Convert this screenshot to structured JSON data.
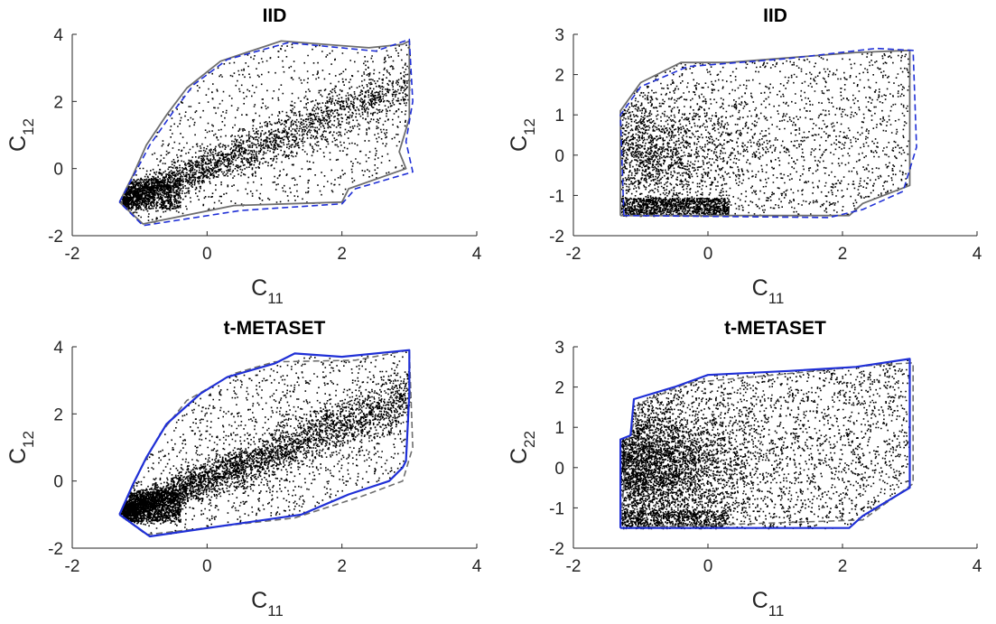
{
  "figure": {
    "colors": {
      "points": "#000000",
      "blue_boundary": "#1f2fd6",
      "gray_boundary": "#6e6e6e",
      "axes": "#262626"
    }
  },
  "chart_data": [
    {
      "type": "scatter",
      "title": "IID",
      "xlabel": {
        "base": "C",
        "sub": "11"
      },
      "ylabel": {
        "base": "C",
        "sub": "12"
      },
      "xlim": [
        -2,
        4
      ],
      "ylim": [
        -2,
        4
      ],
      "xticks": [
        "-2",
        "0",
        "2",
        "4"
      ],
      "yticks": [
        "-2",
        "0",
        "2",
        "4"
      ],
      "points": {
        "count_approx": 4000,
        "distribution": "dense near (-1.2,-0.9), spreading diagonally toward (3,3.8)"
      },
      "boundaries": [
        {
          "style": "solid",
          "color": "gray",
          "points": [
            [
              -1.3,
              -1.0
            ],
            [
              -1.1,
              -0.2
            ],
            [
              -0.9,
              0.7
            ],
            [
              -0.6,
              1.6
            ],
            [
              -0.3,
              2.4
            ],
            [
              0.2,
              3.2
            ],
            [
              1.1,
              3.8
            ],
            [
              2.4,
              3.6
            ],
            [
              2.9,
              3.7
            ],
            [
              3.0,
              3.8
            ],
            [
              3.0,
              1.5
            ],
            [
              2.85,
              0.5
            ],
            [
              2.95,
              0.0
            ],
            [
              2.1,
              -0.6
            ],
            [
              2.0,
              -1.0
            ],
            [
              0.4,
              -1.1
            ],
            [
              -0.95,
              -1.65
            ],
            [
              -1.3,
              -1.0
            ]
          ]
        },
        {
          "style": "dashed",
          "color": "blue",
          "points": [
            [
              -1.3,
              -1.0
            ],
            [
              -1.1,
              -0.25
            ],
            [
              -0.85,
              0.7
            ],
            [
              -0.5,
              1.7
            ],
            [
              -0.2,
              2.5
            ],
            [
              0.3,
              3.25
            ],
            [
              1.2,
              3.75
            ],
            [
              2.5,
              3.5
            ],
            [
              3.0,
              3.85
            ],
            [
              3.05,
              2.0
            ],
            [
              2.95,
              0.8
            ],
            [
              3.05,
              -0.1
            ],
            [
              2.2,
              -0.6
            ],
            [
              2.0,
              -1.05
            ],
            [
              0.5,
              -1.25
            ],
            [
              -0.95,
              -1.7
            ],
            [
              -1.3,
              -1.0
            ]
          ]
        }
      ]
    },
    {
      "type": "scatter",
      "title": "IID",
      "xlabel": {
        "base": "C",
        "sub": "11"
      },
      "ylabel": {
        "base": "C",
        "sub": "12"
      },
      "xlim": [
        -2,
        4
      ],
      "ylim": [
        -2,
        3
      ],
      "xticks": [
        "-2",
        "0",
        "2",
        "4"
      ],
      "yticks": [
        "-2",
        "-1",
        "0",
        "1",
        "2",
        "3"
      ],
      "points": {
        "count_approx": 4000,
        "distribution": "dense near (-0.5,0.2), filling box x in [-1.3,3], y in [-1.5,2.6]"
      },
      "boundaries": [
        {
          "style": "solid",
          "color": "gray",
          "points": [
            [
              -1.3,
              -1.5
            ],
            [
              -1.3,
              1.1
            ],
            [
              -1.0,
              1.8
            ],
            [
              -0.4,
              2.3
            ],
            [
              0.3,
              2.3
            ],
            [
              2.2,
              2.55
            ],
            [
              3.0,
              2.6
            ],
            [
              3.0,
              -0.75
            ],
            [
              2.3,
              -1.2
            ],
            [
              2.1,
              -1.5
            ],
            [
              -1.3,
              -1.5
            ]
          ]
        },
        {
          "style": "dashed",
          "color": "blue",
          "points": [
            [
              -1.25,
              -1.5
            ],
            [
              -1.3,
              1.0
            ],
            [
              -1.0,
              1.7
            ],
            [
              -0.3,
              2.2
            ],
            [
              1.2,
              2.4
            ],
            [
              2.5,
              2.65
            ],
            [
              3.05,
              2.6
            ],
            [
              3.1,
              0.2
            ],
            [
              2.9,
              -0.9
            ],
            [
              2.3,
              -1.35
            ],
            [
              1.8,
              -1.55
            ],
            [
              -1.25,
              -1.5
            ]
          ]
        }
      ]
    },
    {
      "type": "scatter",
      "title": "t-METASET",
      "xlabel": {
        "base": "C",
        "sub": "11"
      },
      "ylabel": {
        "base": "C",
        "sub": "12"
      },
      "xlim": [
        -2,
        4
      ],
      "ylim": [
        -2,
        4
      ],
      "xticks": [
        "-2",
        "0",
        "2",
        "4"
      ],
      "yticks": [
        "-2",
        "0",
        "2",
        "4"
      ],
      "points": {
        "count_approx": 6000,
        "distribution": "dense near (-1.2,-0.9), spreading diagonally toward (3,3.9)"
      },
      "boundaries": [
        {
          "style": "solid",
          "color": "blue",
          "points": [
            [
              -1.3,
              -1.0
            ],
            [
              -1.1,
              -0.1
            ],
            [
              -0.9,
              0.7
            ],
            [
              -0.6,
              1.7
            ],
            [
              -0.1,
              2.6
            ],
            [
              0.3,
              3.1
            ],
            [
              1.0,
              3.5
            ],
            [
              1.3,
              3.8
            ],
            [
              2.0,
              3.7
            ],
            [
              3.0,
              3.9
            ],
            [
              3.0,
              2.6
            ],
            [
              2.95,
              0.6
            ],
            [
              2.9,
              0.4
            ],
            [
              2.7,
              0.0
            ],
            [
              2.1,
              -0.4
            ],
            [
              1.4,
              -1.0
            ],
            [
              -0.85,
              -1.65
            ],
            [
              -1.3,
              -1.0
            ]
          ]
        },
        {
          "style": "dashed",
          "color": "gray",
          "points": [
            [
              -1.3,
              -1.0
            ],
            [
              -1.0,
              0.3
            ],
            [
              -0.7,
              1.4
            ],
            [
              -0.3,
              2.4
            ],
            [
              0.4,
              3.2
            ],
            [
              1.0,
              3.55
            ],
            [
              2.2,
              3.6
            ],
            [
              3.0,
              3.9
            ],
            [
              3.05,
              1.0
            ],
            [
              2.9,
              0.0
            ],
            [
              2.3,
              -0.45
            ],
            [
              1.3,
              -1.1
            ],
            [
              -0.9,
              -1.6
            ],
            [
              -1.3,
              -1.0
            ]
          ]
        }
      ]
    },
    {
      "type": "scatter",
      "title": "t-METASET",
      "xlabel": {
        "base": "C",
        "sub": "11"
      },
      "ylabel": {
        "base": "C",
        "sub": "22"
      },
      "xlim": [
        -2,
        4
      ],
      "ylim": [
        -2,
        3
      ],
      "xticks": [
        "-2",
        "0",
        "2",
        "4"
      ],
      "yticks": [
        "-2",
        "-1",
        "0",
        "1",
        "2",
        "3"
      ],
      "points": {
        "count_approx": 6000,
        "distribution": "filling box x in [-1.3,3], y in [-1.5,2.7], denser on the left"
      },
      "boundaries": [
        {
          "style": "solid",
          "color": "blue",
          "points": [
            [
              -1.3,
              -1.5
            ],
            [
              -1.3,
              0.7
            ],
            [
              -1.15,
              0.8
            ],
            [
              -1.1,
              1.7
            ],
            [
              -0.5,
              2.0
            ],
            [
              0.0,
              2.3
            ],
            [
              1.2,
              2.4
            ],
            [
              2.2,
              2.5
            ],
            [
              3.0,
              2.7
            ],
            [
              3.0,
              -0.5
            ],
            [
              2.3,
              -1.2
            ],
            [
              2.1,
              -1.5
            ],
            [
              -1.3,
              -1.5
            ]
          ]
        },
        {
          "style": "dashed",
          "color": "gray",
          "points": [
            [
              -1.3,
              -1.5
            ],
            [
              -1.2,
              0.6
            ],
            [
              -1.0,
              1.6
            ],
            [
              -0.3,
              2.1
            ],
            [
              1.3,
              2.35
            ],
            [
              2.5,
              2.55
            ],
            [
              3.05,
              2.6
            ],
            [
              3.05,
              -0.4
            ],
            [
              2.3,
              -1.3
            ],
            [
              -1.3,
              -1.5
            ]
          ]
        }
      ]
    }
  ]
}
